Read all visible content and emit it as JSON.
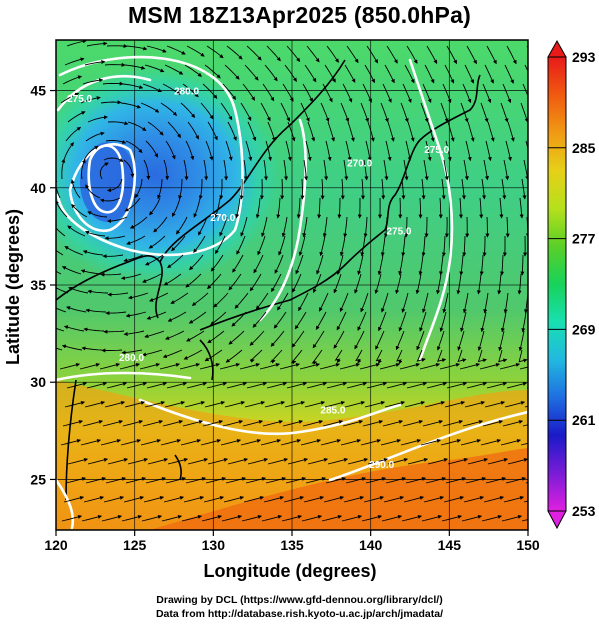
{
  "title": "MSM 18Z13Apr2025 (850.0hPa)",
  "footer": {
    "line1": "Drawing by DCL (https://www.gfd-dennou.org/library/dcl/)",
    "line2": "Data from http://database.rish.kyoto-u.ac.jp/arch/jmadata/"
  },
  "map": {
    "xlabel": "Longitude (degrees)",
    "ylabel": "Latitude  (degrees)",
    "lon_range": [
      120,
      150
    ],
    "lat_range": [
      22.4,
      47.6
    ],
    "x_ticks": [
      {
        "value": 120,
        "label": "120"
      },
      {
        "value": 125,
        "label": "125"
      },
      {
        "value": 130,
        "label": "130"
      },
      {
        "value": 135,
        "label": "135"
      },
      {
        "value": 140,
        "label": "140"
      },
      {
        "value": 145,
        "label": "145"
      },
      {
        "value": 150,
        "label": "150"
      }
    ],
    "y_ticks": [
      {
        "value": 25,
        "label": "25"
      },
      {
        "value": 30,
        "label": "30"
      },
      {
        "value": 35,
        "label": "35"
      },
      {
        "value": 40,
        "label": "40"
      },
      {
        "value": 45,
        "label": "45"
      }
    ],
    "contour_labels": [
      {
        "lon": 128.3,
        "lat": 44.8,
        "label": "280.0"
      },
      {
        "lon": 121.5,
        "lat": 44.4,
        "label": "275.0"
      },
      {
        "lon": 130.6,
        "lat": 38.3,
        "label": "270.0"
      },
      {
        "lon": 139.3,
        "lat": 41.1,
        "label": "270.0"
      },
      {
        "lon": 144.2,
        "lat": 41.8,
        "label": "275.0"
      },
      {
        "lon": 141.8,
        "lat": 37.6,
        "label": "275.0"
      },
      {
        "lon": 124.8,
        "lat": 31.1,
        "label": "280.0"
      },
      {
        "lon": 137.6,
        "lat": 28.4,
        "label": "285.0"
      },
      {
        "lon": 140.7,
        "lat": 25.6,
        "label": "290.0"
      }
    ]
  },
  "colorbar": {
    "ticks": [
      "293",
      "285",
      "277",
      "269",
      "261",
      "253"
    ],
    "min": 253,
    "max": 293,
    "colors": [
      "#e020e0",
      "#7a1cd6",
      "#1a1ac8",
      "#1e6ee0",
      "#22b8e0",
      "#18e0b0",
      "#18d25a",
      "#5ad028",
      "#b6e01c",
      "#e6d018",
      "#f09a14",
      "#f05a10",
      "#e81a1a"
    ]
  }
}
